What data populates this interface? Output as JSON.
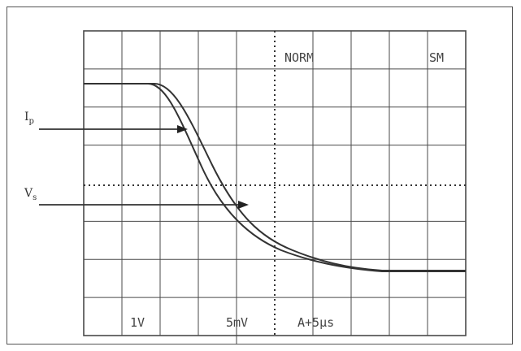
{
  "screen": {
    "mode_label": "NORM",
    "corner_label": "SM",
    "ch1_scale": "1V",
    "ch2_scale": "5mV",
    "timebase": "A+5μs"
  },
  "signals": [
    {
      "name": "I",
      "subscript": "p"
    },
    {
      "name": "V",
      "subscript": "s"
    }
  ],
  "colors": {
    "grid": "#4a4a4a",
    "trace": "#333333",
    "background": "#ffffff"
  }
}
